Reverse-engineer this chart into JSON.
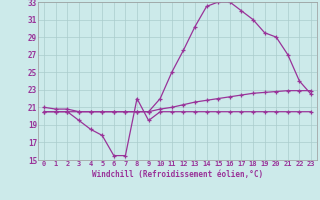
{
  "xlabel": "Windchill (Refroidissement éolien,°C)",
  "bg_color": "#cceaea",
  "grid_color": "#aacccc",
  "line_color": "#993399",
  "xlim": [
    -0.5,
    23.5
  ],
  "ylim": [
    15,
    33
  ],
  "xticks": [
    0,
    1,
    2,
    3,
    4,
    5,
    6,
    7,
    8,
    9,
    10,
    11,
    12,
    13,
    14,
    15,
    16,
    17,
    18,
    19,
    20,
    21,
    22,
    23
  ],
  "yticks": [
    15,
    17,
    19,
    21,
    23,
    25,
    27,
    29,
    31,
    33
  ],
  "series1_x": [
    0,
    1,
    2,
    3,
    4,
    5,
    6,
    7,
    8,
    9,
    10,
    11,
    12,
    13,
    14,
    15,
    16,
    17,
    18,
    19,
    20,
    21,
    22,
    23
  ],
  "series1_y": [
    21.0,
    20.8,
    20.8,
    20.5,
    20.5,
    20.5,
    20.5,
    20.5,
    20.5,
    20.5,
    22.0,
    25.0,
    27.5,
    30.2,
    32.5,
    33.0,
    33.0,
    32.0,
    31.0,
    29.5,
    29.0,
    27.0,
    24.0,
    22.5
  ],
  "series2_x": [
    0,
    1,
    2,
    3,
    4,
    5,
    6,
    7,
    8,
    9,
    10,
    11,
    12,
    13,
    14,
    15,
    16,
    17,
    18,
    19,
    20,
    21,
    22,
    23
  ],
  "series2_y": [
    20.5,
    20.5,
    20.5,
    20.5,
    20.5,
    20.5,
    20.5,
    20.5,
    20.5,
    20.5,
    20.8,
    21.0,
    21.3,
    21.6,
    21.8,
    22.0,
    22.2,
    22.4,
    22.6,
    22.7,
    22.8,
    22.9,
    22.9,
    22.9
  ],
  "series3_x": [
    0,
    1,
    2,
    3,
    4,
    5,
    6,
    7,
    8,
    9,
    10,
    11,
    12,
    13,
    14,
    15,
    16,
    17,
    18,
    19,
    20,
    21,
    22,
    23
  ],
  "series3_y": [
    20.5,
    20.5,
    20.5,
    19.5,
    18.5,
    17.8,
    15.5,
    15.5,
    22.0,
    19.5,
    20.5,
    20.5,
    20.5,
    20.5,
    20.5,
    20.5,
    20.5,
    20.5,
    20.5,
    20.5,
    20.5,
    20.5,
    20.5,
    20.5
  ]
}
